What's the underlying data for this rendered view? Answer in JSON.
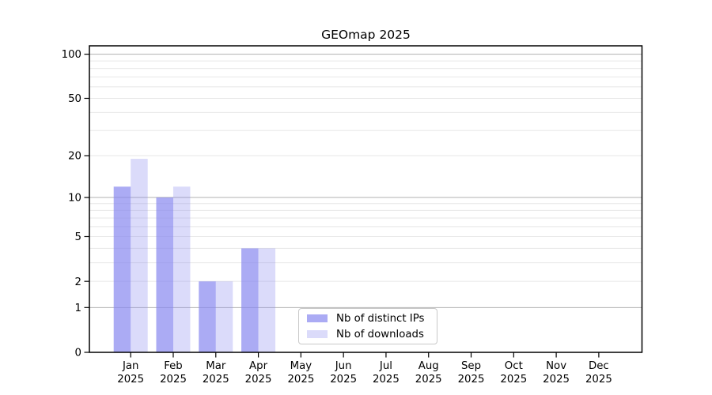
{
  "figure": {
    "title": "GEOmap 2025"
  },
  "chart_data": {
    "type": "bar",
    "title": "GEOmap 2025",
    "xlabel": "",
    "ylabel": "",
    "months": [
      "Jan",
      "Feb",
      "Mar",
      "Apr",
      "May",
      "Jun",
      "Jul",
      "Aug",
      "Sep",
      "Oct",
      "Nov",
      "Dec"
    ],
    "year": "2025",
    "categories": [
      "Jan 2025",
      "Feb 2025",
      "Mar 2025",
      "Apr 2025",
      "May 2025",
      "Jun 2025",
      "Jul 2025",
      "Aug 2025",
      "Sep 2025",
      "Oct 2025",
      "Nov 2025",
      "Dec 2025"
    ],
    "series": [
      {
        "name": "Nb of distinct IPs",
        "values": [
          12,
          10,
          2,
          4,
          0,
          0,
          0,
          0,
          0,
          0,
          0,
          0
        ],
        "color": "rgba(136,136,240,0.7)"
      },
      {
        "name": "Nb of downloads",
        "values": [
          19,
          12,
          2,
          4,
          0,
          0,
          0,
          0,
          0,
          0,
          0,
          0
        ],
        "color": "rgba(136,136,240,0.3)"
      }
    ],
    "y_scale": "log10(v+1)",
    "ylim": [
      0,
      114
    ],
    "y_ticks": [
      0,
      1,
      2,
      5,
      10,
      20,
      50,
      100
    ],
    "grid_major": [
      1,
      10,
      100
    ],
    "grid_minor": [
      2,
      3,
      4,
      5,
      6,
      7,
      8,
      9,
      20,
      30,
      40,
      50,
      60,
      70,
      80,
      90
    ],
    "grid": "on",
    "legend_position": "lower center",
    "colors": {
      "bar_dark": "rgba(136,136,240,0.7)",
      "bar_light": "rgba(136,136,240,0.3)",
      "grid_major": "#b0b0b0",
      "grid_minor": "#e7e7e7",
      "spine": "#000000",
      "text": "#000000",
      "background": "#ffffff"
    }
  }
}
